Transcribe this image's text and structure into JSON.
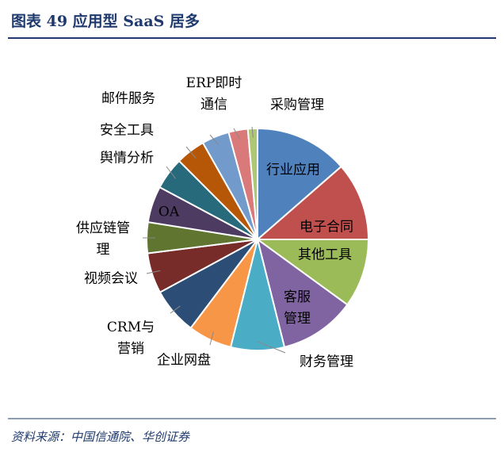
{
  "header": {
    "title": "图表 49    应用型 SaaS 居多"
  },
  "chart_data": {
    "type": "pie",
    "categories": [
      "行业应用",
      "电子合同",
      "其他工具",
      "客服管理",
      "财务管理",
      "企业网盘",
      "CRM与营销",
      "视频会议",
      "供应链管理",
      "OA",
      "舆情分析",
      "安全工具",
      "邮件服务",
      "ERP即时通信",
      "采购管理"
    ],
    "values": [
      13.6,
      11.4,
      10,
      11.1,
      7.8,
      6.4,
      6.8,
      5.9,
      4.5,
      5.3,
      4.7,
      4.3,
      4,
      2.8,
      1.4
    ],
    "colors": [
      "#4f81bd",
      "#c0504d",
      "#9bbb59",
      "#8064a2",
      "#4bacc6",
      "#f79646",
      "#2c4d75",
      "#772c2a",
      "#5f7530",
      "#4d3b62",
      "#276a7c",
      "#b65708",
      "#729aca",
      "#d9797a",
      "#aec774"
    ]
  },
  "footer": {
    "source": "资料来源：中国信通院、华创证券"
  }
}
